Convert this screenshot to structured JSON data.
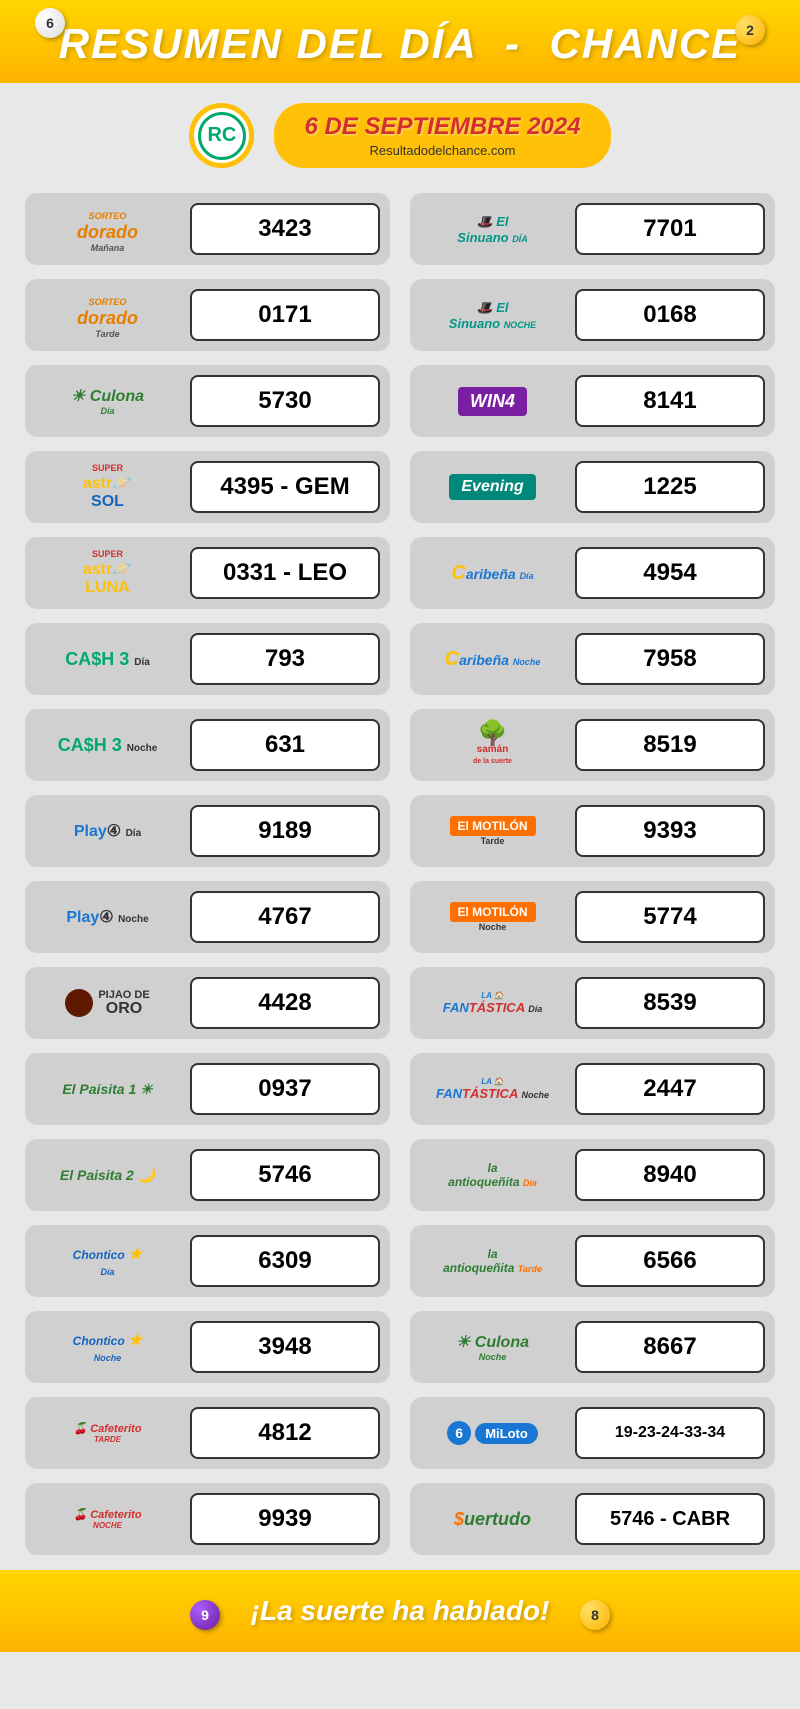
{
  "header": {
    "title_left": "RESUMEN DEL DÍA",
    "title_right": "CHANCE",
    "ball_top_left": "6",
    "ball_top_right": "2"
  },
  "date_section": {
    "rc_label": "RC",
    "date": "6 DE SEPTIEMBRE 2024",
    "url": "Resultadodelchance.com"
  },
  "left_column": [
    {
      "logo_type": "dorado",
      "name": "Sorteo Dorado",
      "subtitle": "Mañana",
      "result": "3423"
    },
    {
      "logo_type": "dorado",
      "name": "Sorteo Dorado",
      "subtitle": "Tarde",
      "result": "0171"
    },
    {
      "logo_type": "culona",
      "name": "La Culona",
      "subtitle": "Día",
      "result": "5730"
    },
    {
      "logo_type": "astro_sol",
      "name": "Astro Sol",
      "subtitle": "SUPER",
      "result": "4395 - GEM"
    },
    {
      "logo_type": "astro_luna",
      "name": "Astro Luna",
      "subtitle": "SUPER",
      "result": "0331 - LEO"
    },
    {
      "logo_type": "cash3",
      "name": "CA$H 3",
      "subtitle": "Día",
      "result": "793"
    },
    {
      "logo_type": "cash3",
      "name": "CA$H 3",
      "subtitle": "Noche",
      "result": "631"
    },
    {
      "logo_type": "play4",
      "name": "Play 4",
      "subtitle": "Día",
      "result": "9189"
    },
    {
      "logo_type": "play4",
      "name": "Play 4",
      "subtitle": "Noche",
      "result": "4767"
    },
    {
      "logo_type": "pijao",
      "name": "Pijao de Oro",
      "subtitle": "",
      "result": "4428"
    },
    {
      "logo_type": "paisita",
      "name": "El Paisita 1",
      "subtitle": "",
      "result": "0937"
    },
    {
      "logo_type": "paisita",
      "name": "El Paisita 2",
      "subtitle": "",
      "result": "5746"
    },
    {
      "logo_type": "chontico",
      "name": "Chontico",
      "subtitle": "Día",
      "result": "6309"
    },
    {
      "logo_type": "chontico",
      "name": "Chontico",
      "subtitle": "Noche",
      "result": "3948"
    },
    {
      "logo_type": "cafeterito",
      "name": "Cafeterito",
      "subtitle": "TARDE",
      "result": "4812"
    },
    {
      "logo_type": "cafeterito",
      "name": "Cafeterito",
      "subtitle": "NOCHE",
      "result": "9939"
    }
  ],
  "right_column": [
    {
      "logo_type": "sinuano",
      "name": "El Sinuano",
      "subtitle": "DÍA",
      "result": "7701"
    },
    {
      "logo_type": "sinuano",
      "name": "El Sinuano",
      "subtitle": "NOCHE",
      "result": "0168"
    },
    {
      "logo_type": "win4",
      "name": "WIN4",
      "subtitle": "",
      "result": "8141"
    },
    {
      "logo_type": "evening",
      "name": "Evening",
      "subtitle": "",
      "result": "1225"
    },
    {
      "logo_type": "caribena",
      "name": "La Caribeña",
      "subtitle": "Día",
      "result": "4954"
    },
    {
      "logo_type": "caribena",
      "name": "La Caribeña",
      "subtitle": "Noche",
      "result": "7958"
    },
    {
      "logo_type": "saman",
      "name": "Samán",
      "subtitle": "de la suerte",
      "result": "8519"
    },
    {
      "logo_type": "motilon",
      "name": "El MOTILÓN",
      "subtitle": "Tarde",
      "result": "9393"
    },
    {
      "logo_type": "motilon",
      "name": "El MOTILÓN",
      "subtitle": "Noche",
      "result": "5774"
    },
    {
      "logo_type": "fantastica",
      "name": "Fantástica",
      "subtitle": "Día",
      "result": "8539"
    },
    {
      "logo_type": "fantastica",
      "name": "Fantástica",
      "subtitle": "Noche",
      "result": "2447"
    },
    {
      "logo_type": "antioq",
      "name": "La Antioqueñita",
      "subtitle": "Día",
      "result": "8940"
    },
    {
      "logo_type": "antioq",
      "name": "La Antioqueñita",
      "subtitle": "Tarde",
      "result": "6566"
    },
    {
      "logo_type": "culona",
      "name": "La Culona",
      "subtitle": "Noche",
      "result": "8667"
    },
    {
      "logo_type": "miloto",
      "name": "MiLoto",
      "subtitle": "",
      "result": "19-23-24-33-34",
      "size": "small"
    },
    {
      "logo_type": "suertudo",
      "name": "Suertudo",
      "subtitle": "",
      "result": "5746 - CABR",
      "size": "medium"
    }
  ],
  "footer": {
    "text": "¡La suerte ha hablado!",
    "ball_left": "9",
    "ball_right": "8"
  },
  "colors": {
    "header_gradient_start": "#ffd600",
    "header_gradient_end": "#ffb300",
    "background": "#e8e8e8",
    "card_bg": "#d0d0d0",
    "date_badge_bg": "#ffc107",
    "date_text": "#d32f2f",
    "rc_green": "#00a86b"
  }
}
